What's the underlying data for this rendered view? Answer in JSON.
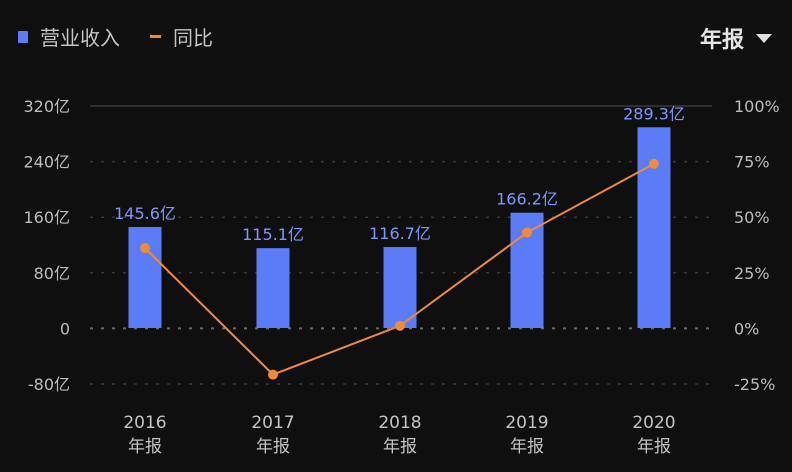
{
  "legend": {
    "bar_label": "营业收入",
    "line_label": "同比"
  },
  "period_selector": {
    "label": "年报"
  },
  "colors": {
    "bar": "#5b7cf6",
    "line": "#f08a3c",
    "background": "#0f0f10"
  },
  "chart_data": {
    "type": "bar",
    "categories": [
      "2016 年报",
      "2017 年报",
      "2018 年报",
      "2019 年报",
      "2020 年报"
    ],
    "series": [
      {
        "name": "营业收入",
        "type": "bar",
        "axis": "left",
        "unit": "亿",
        "values": [
          145.6,
          115.1,
          116.7,
          166.2,
          289.3
        ],
        "labels": [
          "145.6亿",
          "115.1亿",
          "116.7亿",
          "166.2亿",
          "289.3亿"
        ]
      },
      {
        "name": "同比",
        "type": "line",
        "axis": "right",
        "unit": "%",
        "values": [
          36,
          -21,
          1,
          43,
          74
        ]
      }
    ],
    "left_axis": {
      "ticks": [
        "320亿",
        "240亿",
        "160亿",
        "80亿",
        "0",
        "-80亿"
      ],
      "range": [
        -80,
        320
      ]
    },
    "right_axis": {
      "ticks": [
        "100%",
        "75%",
        "50%",
        "25%",
        "0%",
        "-25%"
      ],
      "range": [
        -25,
        100
      ]
    },
    "x_labels": [
      {
        "year": "2016",
        "period": "年报"
      },
      {
        "year": "2017",
        "period": "年报"
      },
      {
        "year": "2018",
        "period": "年报"
      },
      {
        "year": "2019",
        "period": "年报"
      },
      {
        "year": "2020",
        "period": "年报"
      }
    ],
    "grid": true,
    "legend_position": "top-left"
  }
}
